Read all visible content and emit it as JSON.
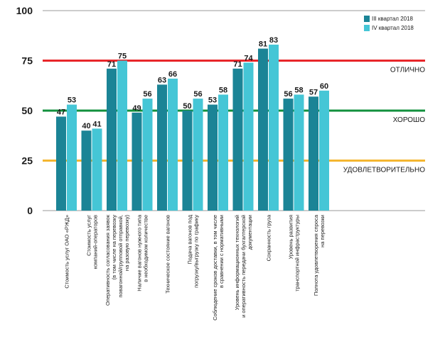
{
  "chart_data": {
    "type": "bar",
    "title": "",
    "xlabel": "",
    "ylabel": "",
    "ylim": [
      0,
      100
    ],
    "yticks": [
      0,
      25,
      50,
      75,
      100
    ],
    "grid": false,
    "legend_position": "top-right",
    "categories": [
      [
        "Стоимость услуг ОАО «РЖД»"
      ],
      [
        "Стоимость услуг",
        "компаний-операторов"
      ],
      [
        "Оперативность согласования заявок",
        "(в том числе на перевозку",
        "повагонной/групповой отправкой,",
        "на разовую перевозку)"
      ],
      [
        "Наличие вагонов нужного типа",
        "в необходимом количестве"
      ],
      [
        "Техническое состояние вагонов"
      ],
      [
        "Подача вагонов под",
        "погрузку/выгрузку по графику"
      ],
      [
        "Соблюдение сроков доставки, в том числе",
        "в сравнении с нормативными"
      ],
      [
        "Уровень информационных технологий",
        "и оперативность передачи бухгалтерской",
        "документации"
      ],
      [
        "Сохранность груза"
      ],
      [
        "Уровень развития",
        "транспортной инфраструктуры"
      ],
      [
        "Полнота удовлетворения спроса",
        "на перевозки"
      ]
    ],
    "series": [
      {
        "name": "III квартал 2018",
        "color": "#1b8496",
        "values": [
          47,
          40,
          71,
          49,
          63,
          50,
          53,
          71,
          81,
          56,
          57
        ]
      },
      {
        "name": "IV квартал 2018",
        "color": "#45c6d6",
        "values": [
          53,
          41,
          75,
          56,
          66,
          56,
          58,
          74,
          83,
          58,
          60
        ]
      }
    ],
    "reference_lines": [
      {
        "label": "ОТЛИЧНО",
        "value": 75,
        "color": "#e8262a"
      },
      {
        "label": "ХОРОШО",
        "value": 50,
        "color": "#12913d"
      },
      {
        "label": "УДОВЛЕТВОРИТЕЛЬНО",
        "value": 25,
        "color": "#f4b630"
      }
    ]
  }
}
